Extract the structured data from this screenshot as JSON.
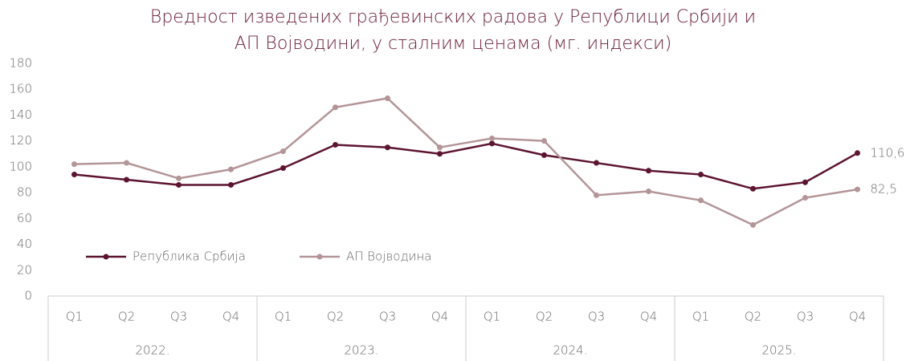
{
  "chart_data": {
    "type": "line",
    "title": [
      "Вредност изведених грађевинских радова у Републици Србији и",
      "АП Војводини, у сталним ценама (мг. индекси)"
    ],
    "categories": [
      "Q1",
      "Q2",
      "Q3",
      "Q4",
      "Q1",
      "Q2",
      "Q3",
      "Q4",
      "Q1",
      "Q2",
      "Q3",
      "Q4",
      "Q1",
      "Q2",
      "Q3",
      "Q4"
    ],
    "groups": [
      "2022.",
      "2023.",
      "2024.",
      "2025."
    ],
    "series": [
      {
        "name": "Република Србија",
        "color": "#5c1430",
        "values": [
          94,
          90,
          86,
          86,
          99,
          117,
          115,
          110,
          118,
          109,
          103,
          97,
          94,
          83,
          88,
          110.6
        ],
        "value_labels": [
          null,
          null,
          null,
          null,
          null,
          null,
          null,
          null,
          null,
          null,
          null,
          null,
          null,
          null,
          null,
          "110,6"
        ]
      },
      {
        "name": "АП Војводина",
        "color": "#b39597",
        "values": [
          102,
          103,
          91,
          98,
          112,
          146,
          153,
          115,
          122,
          120,
          78,
          81,
          74,
          55,
          76,
          82.5
        ],
        "value_labels": [
          null,
          null,
          null,
          null,
          null,
          null,
          null,
          null,
          null,
          null,
          null,
          null,
          null,
          null,
          null,
          "82,5"
        ]
      }
    ],
    "ylim": [
      0,
      180
    ],
    "yticks": [
      0,
      20,
      40,
      60,
      80,
      100,
      120,
      140,
      160,
      180
    ],
    "grid": false
  }
}
